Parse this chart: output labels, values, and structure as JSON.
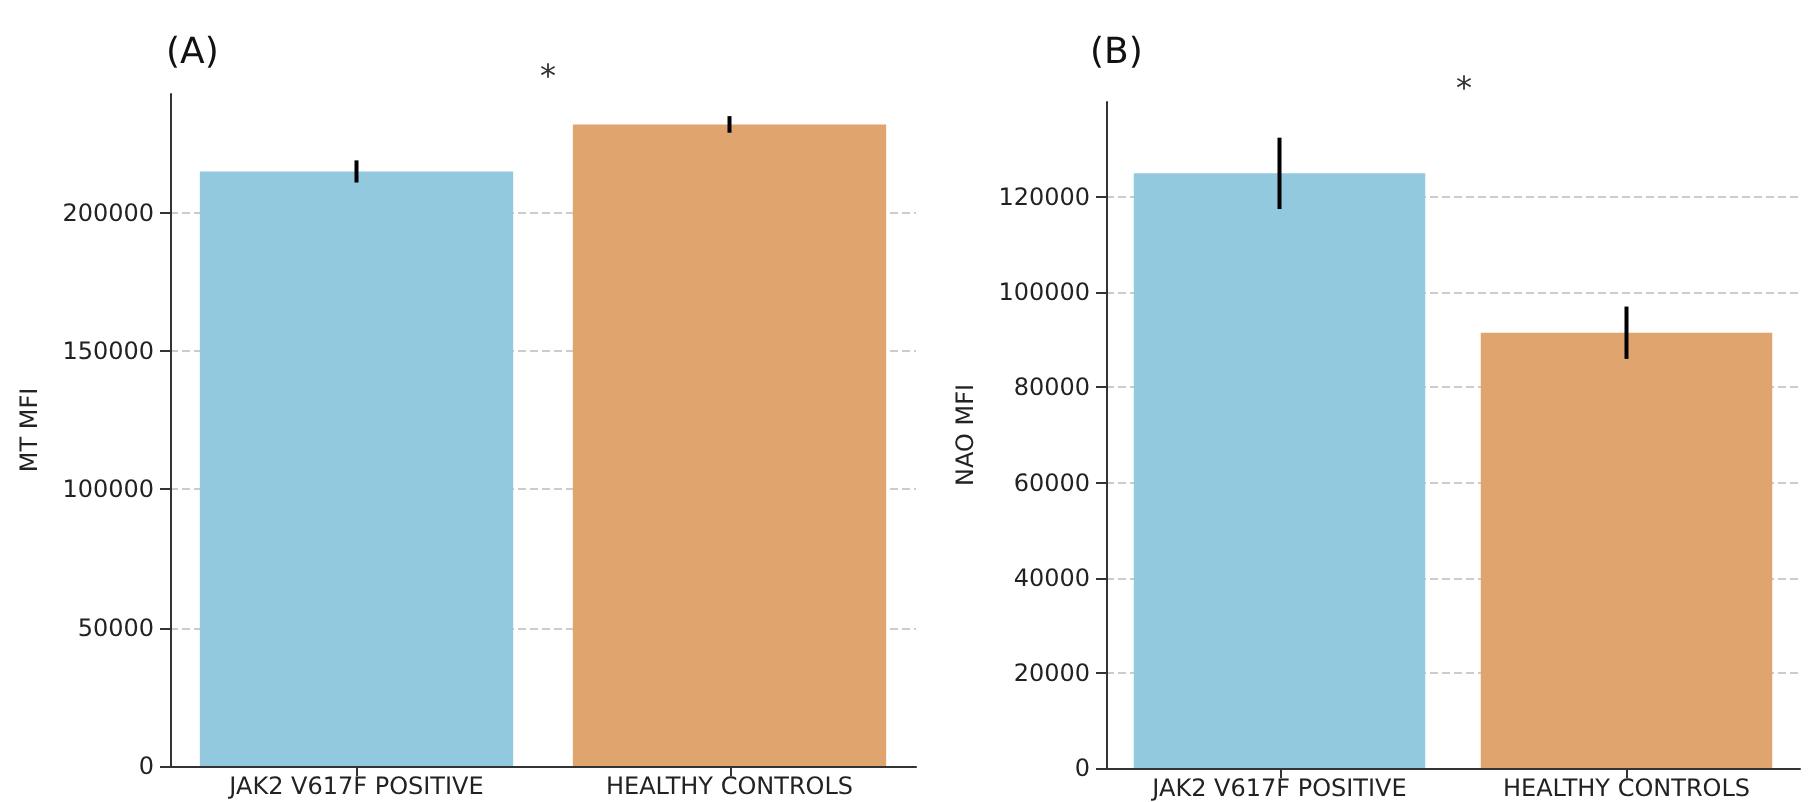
{
  "chart_data": [
    {
      "type": "bar",
      "title": "(A)",
      "ylabel": "MT MFI",
      "categories": [
        "JAK2 V617F POSITIVE",
        "HEALTHY CONTROLS"
      ],
      "values": [
        215000,
        232000
      ],
      "errors": [
        4000,
        3000
      ],
      "colors": [
        "#93c9de",
        "#e0a46e"
      ],
      "ylim": [
        0,
        243000
      ],
      "yticks": [
        0,
        50000,
        100000,
        150000,
        200000
      ],
      "grid": "y",
      "annotations": [
        "*"
      ]
    },
    {
      "type": "bar",
      "title": "(B)",
      "ylabel": "NAO MFI",
      "categories": [
        "JAK2 V617F POSITIVE",
        "HEALTHY CONTROLS"
      ],
      "values": [
        125000,
        91500
      ],
      "errors": [
        7500,
        5500
      ],
      "colors": [
        "#93c9de",
        "#e0a46e"
      ],
      "ylim": [
        0,
        140000
      ],
      "yticks": [
        0,
        20000,
        40000,
        60000,
        80000,
        100000,
        120000
      ],
      "grid": "y",
      "annotations": [
        "*"
      ]
    }
  ]
}
